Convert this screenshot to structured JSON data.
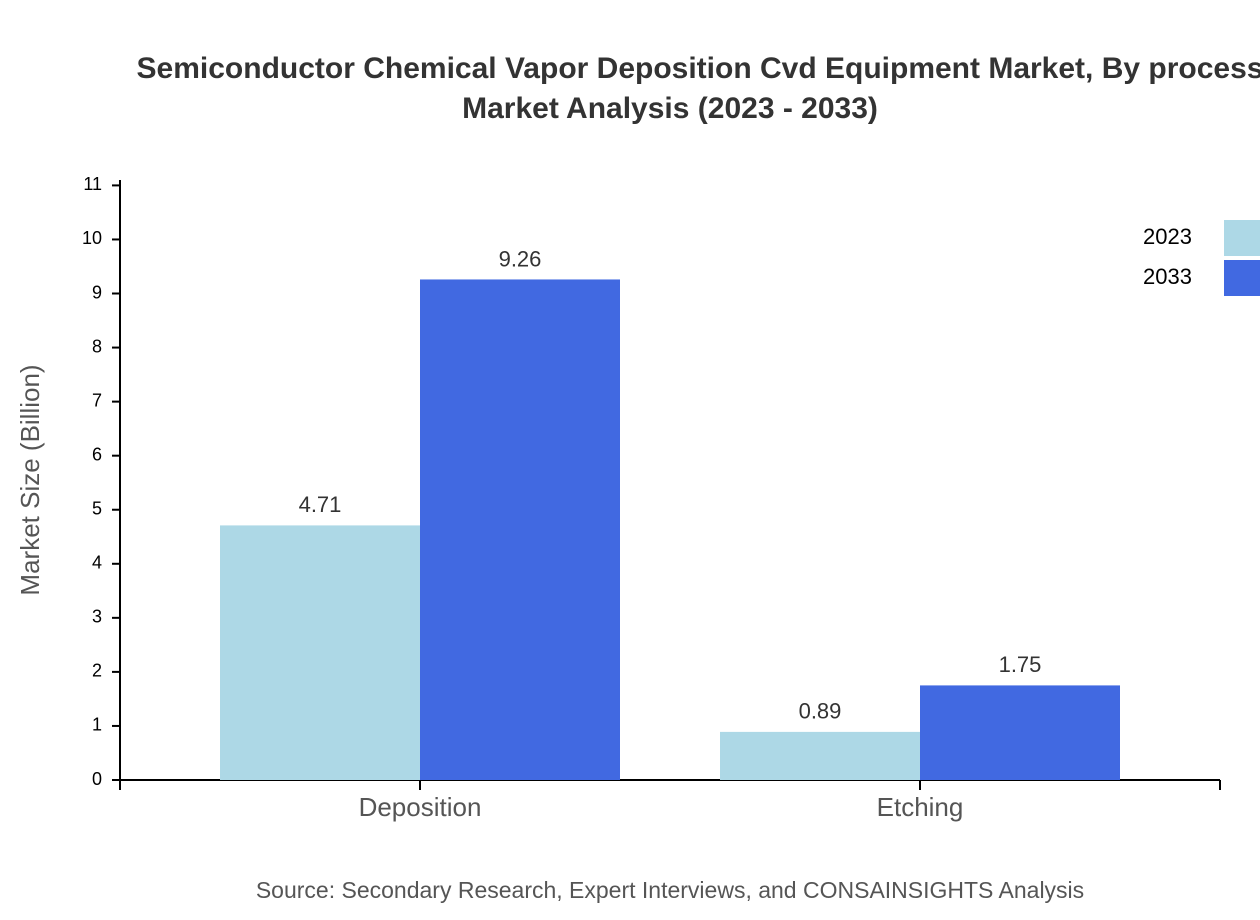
{
  "chart_data": {
    "type": "bar",
    "title": [
      "Semiconductor Chemical Vapor Deposition Cvd Equipment Market, By process",
      "Market Analysis (2023 - 2033)"
    ],
    "y_label": "Market Size (Billion)",
    "source": "Source: Secondary Research, Expert Interviews, and CONSAINSIGHTS Analysis",
    "categories": [
      "Deposition",
      "Etching"
    ],
    "series": [
      {
        "name": "2023",
        "color": "#add8e6",
        "values": [
          4.71,
          0.89
        ]
      },
      {
        "name": "2033",
        "color": "#4169e1",
        "values": [
          9.26,
          1.75
        ]
      }
    ],
    "ylim": [
      0,
      11.1
    ],
    "yticks": [
      0,
      1,
      2,
      3,
      4,
      5,
      6,
      7,
      8,
      9,
      10,
      11
    ],
    "legend": "top-right"
  }
}
